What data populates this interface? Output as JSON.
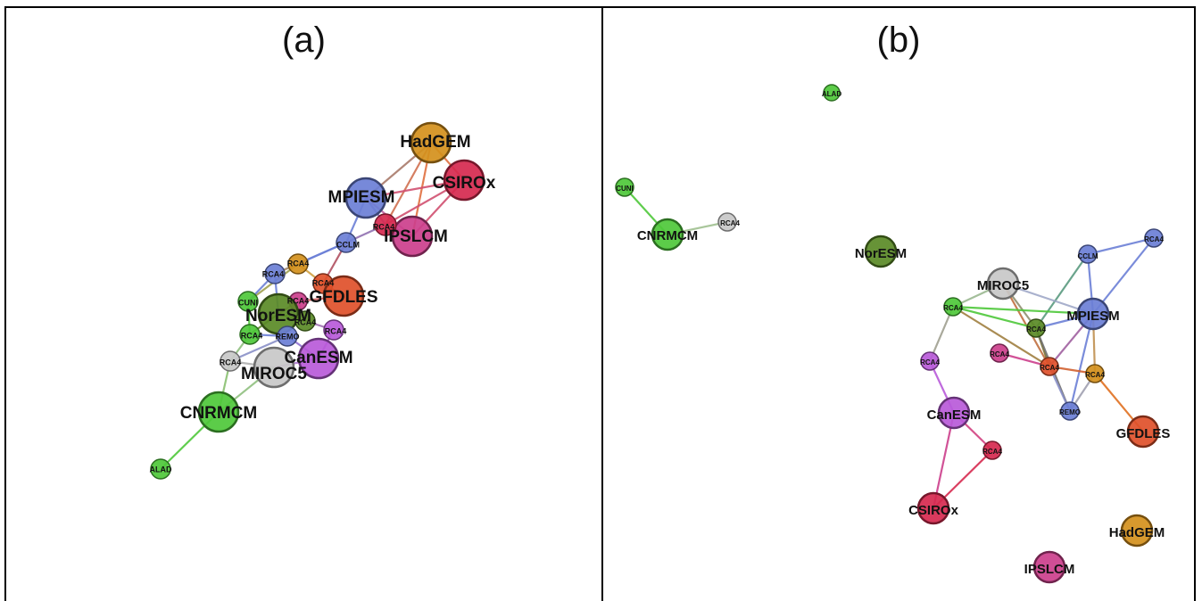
{
  "panels": [
    {
      "id": "a",
      "title": "(a)",
      "nodes": [
        {
          "id": "HadGEM",
          "label": "HadGEM",
          "color": "#d4901c"
        },
        {
          "id": "CSIROx",
          "label": "CSIROx",
          "color": "#d6294f"
        },
        {
          "id": "MPIESM",
          "label": "MPIESM",
          "color": "#6b7fd6"
        },
        {
          "id": "IPSLCM",
          "label": "IPSLCM",
          "color": "#cc3f8c"
        },
        {
          "id": "RCA4_r1",
          "label": "RCA4",
          "color": "#d6294f"
        },
        {
          "id": "CCLM",
          "label": "CCLM",
          "color": "#6b7fd6"
        },
        {
          "id": "RCA4_o",
          "label": "RCA4",
          "color": "#d4901c"
        },
        {
          "id": "RCA4_b",
          "label": "RCA4",
          "color": "#6b7fd6"
        },
        {
          "id": "RCA4_or",
          "label": "RCA4",
          "color": "#e0502a"
        },
        {
          "id": "GFDLES",
          "label": "GFDLES",
          "color": "#e0502a"
        },
        {
          "id": "RCA4_p",
          "label": "RCA4",
          "color": "#cc3f8c"
        },
        {
          "id": "CUNI",
          "label": "CUNI",
          "color": "#4ec83a"
        },
        {
          "id": "NorESM",
          "label": "NorESM",
          "color": "#5a8a26"
        },
        {
          "id": "RCA4_ol",
          "label": "RCA4",
          "color": "#5a8a26"
        },
        {
          "id": "RCA4_g",
          "label": "RCA4",
          "color": "#4ec83a"
        },
        {
          "id": "REMO",
          "label": "REMO",
          "color": "#6b7fd6"
        },
        {
          "id": "RCA4_v",
          "label": "RCA4",
          "color": "#b85ad9"
        },
        {
          "id": "RCA4_gr",
          "label": "RCA4",
          "color": "#c8c8c8"
        },
        {
          "id": "CanESM",
          "label": "CanESM",
          "color": "#b85ad9"
        },
        {
          "id": "MIROC5",
          "label": "MIROC5",
          "color": "#c8c8c8"
        },
        {
          "id": "CNRMCM",
          "label": "CNRMCM",
          "color": "#4ec83a"
        },
        {
          "id": "ALAD",
          "label": "ALAD",
          "color": "#4ec83a"
        }
      ]
    },
    {
      "id": "b",
      "title": "(b)",
      "nodes": [
        {
          "id": "ALAD",
          "label": "ALAD",
          "color": "#4ec83a"
        },
        {
          "id": "CUNI",
          "label": "CUNI",
          "color": "#4ec83a"
        },
        {
          "id": "CNRMCM",
          "label": "CNRMCM",
          "color": "#4ec83a"
        },
        {
          "id": "RCA4_gr",
          "label": "RCA4",
          "color": "#c8c8c8"
        },
        {
          "id": "NorESM",
          "label": "NorESM",
          "color": "#5a8a26"
        },
        {
          "id": "CCLM",
          "label": "CCLM",
          "color": "#6b7fd6"
        },
        {
          "id": "RCA4_b",
          "label": "RCA4",
          "color": "#6b7fd6"
        },
        {
          "id": "MIROC5",
          "label": "MIROC5",
          "color": "#c8c8c8"
        },
        {
          "id": "RCA4_g",
          "label": "RCA4",
          "color": "#4ec83a"
        },
        {
          "id": "MPIESM",
          "label": "MPIESM",
          "color": "#6b7fd6"
        },
        {
          "id": "RCA4_ol",
          "label": "RCA4",
          "color": "#5a8a26"
        },
        {
          "id": "RCA4_p",
          "label": "RCA4",
          "color": "#cc3f8c"
        },
        {
          "id": "RCA4_or",
          "label": "RCA4",
          "color": "#e0502a"
        },
        {
          "id": "RCA4_o",
          "label": "RCA4",
          "color": "#d4901c"
        },
        {
          "id": "RCA4_v",
          "label": "RCA4",
          "color": "#b85ad9"
        },
        {
          "id": "REMO",
          "label": "REMO",
          "color": "#6b7fd6"
        },
        {
          "id": "GFDLES",
          "label": "GFDLES",
          "color": "#e0502a"
        },
        {
          "id": "CanESM",
          "label": "CanESM",
          "color": "#b85ad9"
        },
        {
          "id": "RCA4_r",
          "label": "RCA4",
          "color": "#d6294f"
        },
        {
          "id": "CSIROx",
          "label": "CSIROx",
          "color": "#d6294f"
        },
        {
          "id": "HadGEM",
          "label": "HadGEM",
          "color": "#d4901c"
        },
        {
          "id": "IPSLCM",
          "label": "IPSLCM",
          "color": "#cc3f8c"
        }
      ]
    }
  ]
}
